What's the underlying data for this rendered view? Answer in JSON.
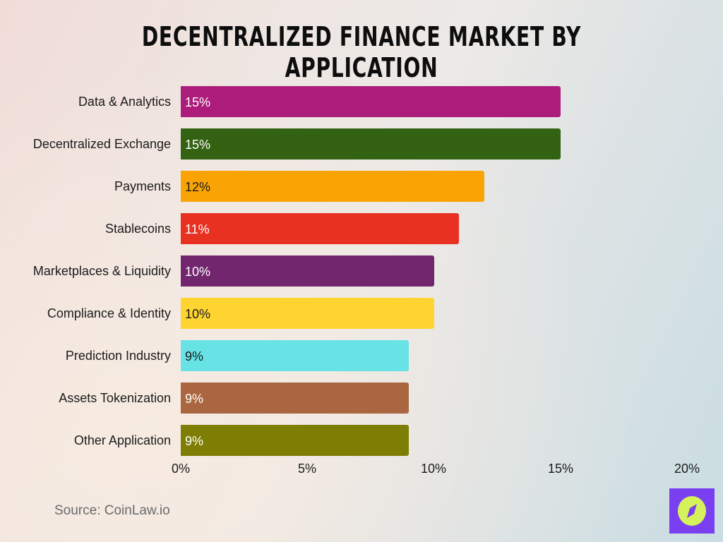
{
  "title": "Decentralized Finance Market by Application",
  "source": "Source: CoinLaw.io",
  "logo": {
    "icon": "compass-icon",
    "bg_color": "#7b3ff2",
    "fg_color": "#d6f25a"
  },
  "axis": {
    "ticks": [
      "0%",
      "5%",
      "10%",
      "15%",
      "20%"
    ]
  },
  "bars": [
    {
      "label": "Data & Analytics",
      "value": 15,
      "value_label": "15%",
      "color": "#ac1c7a",
      "text_color": "#ffffff"
    },
    {
      "label": "Decentralized Exchange",
      "value": 15,
      "value_label": "15%",
      "color": "#336312",
      "text_color": "#ffffff"
    },
    {
      "label": "Payments",
      "value": 12,
      "value_label": "12%",
      "color": "#faa305",
      "text_color": "#1b1b1b"
    },
    {
      "label": "Stablecoins",
      "value": 11,
      "value_label": "11%",
      "color": "#e83121",
      "text_color": "#ffffff"
    },
    {
      "label": "Marketplaces & Liquidity",
      "value": 10,
      "value_label": "10%",
      "color": "#72266e",
      "text_color": "#ffffff"
    },
    {
      "label": "Compliance & Identity",
      "value": 10,
      "value_label": "10%",
      "color": "#fed430",
      "text_color": "#1b1b1b"
    },
    {
      "label": "Prediction Industry",
      "value": 9,
      "value_label": "9%",
      "color": "#67e3e6",
      "text_color": "#1b1b1b"
    },
    {
      "label": "Assets Tokenization",
      "value": 9,
      "value_label": "9%",
      "color": "#aa6640",
      "text_color": "#ffffff"
    },
    {
      "label": "Other Application",
      "value": 9,
      "value_label": "9%",
      "color": "#7d7e03",
      "text_color": "#ffffff"
    }
  ],
  "chart_data": {
    "type": "bar",
    "orientation": "horizontal",
    "title": "Decentralized Finance Market by Application",
    "categories": [
      "Data & Analytics",
      "Decentralized Exchange",
      "Payments",
      "Stablecoins",
      "Marketplaces & Liquidity",
      "Compliance & Identity",
      "Prediction Industry",
      "Assets Tokenization",
      "Other Application"
    ],
    "values": [
      15,
      15,
      12,
      11,
      10,
      10,
      9,
      9,
      9
    ],
    "unit": "%",
    "xlabel": "",
    "ylabel": "",
    "xlim": [
      0,
      20
    ],
    "x_ticks": [
      "0%",
      "5%",
      "10%",
      "15%",
      "20%"
    ],
    "grid": false,
    "legend": null,
    "annotations": [
      "Source: CoinLaw.io"
    ]
  }
}
